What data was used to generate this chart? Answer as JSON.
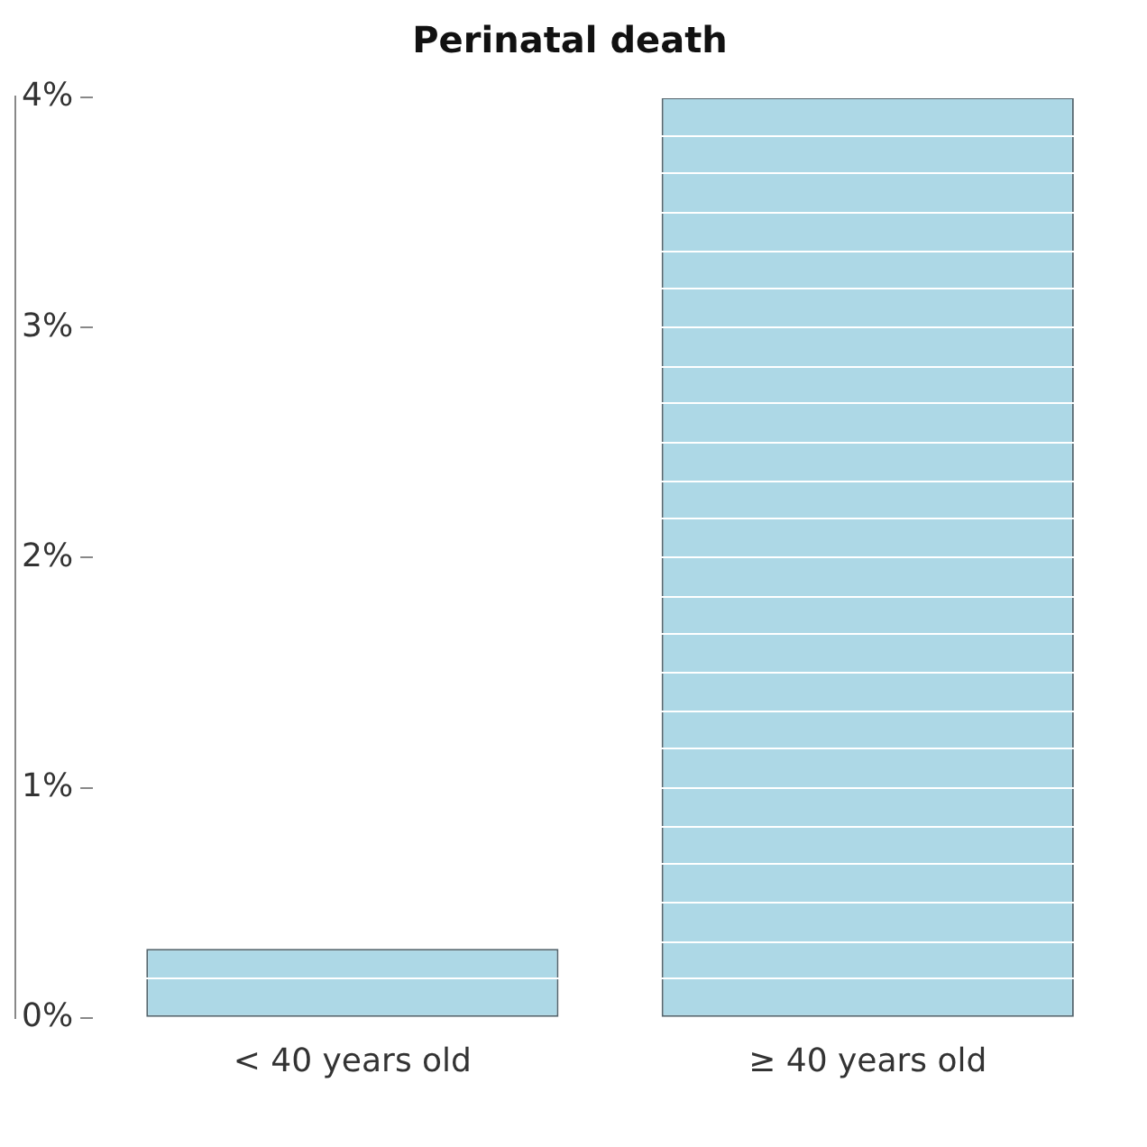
{
  "chart_data": {
    "type": "bar",
    "title": "Perinatal death",
    "categories": [
      "< 40 years old",
      "≥ 40 years old"
    ],
    "values": [
      0.3,
      4.0
    ],
    "color": "#add8e6",
    "ylim": [
      0,
      4
    ],
    "yticks": [
      {
        "value": 0,
        "label": "0%"
      },
      {
        "value": 0.17,
        "label": null
      },
      {
        "value": 0.33,
        "label": null
      },
      {
        "value": 0.5,
        "label": null
      },
      {
        "value": 0.67,
        "label": null
      },
      {
        "value": 0.83,
        "label": null
      },
      {
        "value": 1,
        "label": "1%"
      },
      {
        "value": 1.17,
        "label": null
      },
      {
        "value": 1.33,
        "label": null
      },
      {
        "value": 1.5,
        "label": null
      },
      {
        "value": 1.67,
        "label": null
      },
      {
        "value": 1.83,
        "label": null
      },
      {
        "value": 2,
        "label": "2%"
      },
      {
        "value": 2.17,
        "label": null
      },
      {
        "value": 2.33,
        "label": null
      },
      {
        "value": 2.5,
        "label": null
      },
      {
        "value": 2.67,
        "label": null
      },
      {
        "value": 2.83,
        "label": null
      },
      {
        "value": 3,
        "label": "3%"
      },
      {
        "value": 3.17,
        "label": null
      },
      {
        "value": 3.33,
        "label": null
      },
      {
        "value": 3.5,
        "label": null
      },
      {
        "value": 3.67,
        "label": null
      },
      {
        "value": 3.83,
        "label": null
      },
      {
        "value": 4,
        "label": "4%"
      }
    ],
    "grid": "y",
    "legend": false
  }
}
